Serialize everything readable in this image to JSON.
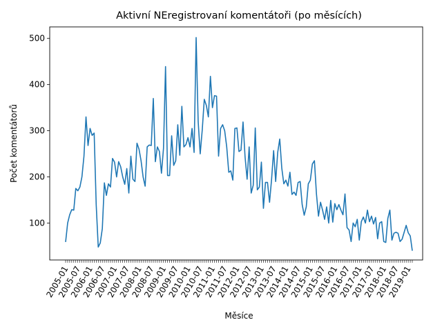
{
  "chart_data": {
    "type": "line",
    "title": "Aktivní NEregistrovaní komentátoři (po měsících)",
    "xlabel": "Měsíce",
    "ylabel": "Počet komentátorů",
    "ylim": [
      20,
      525
    ],
    "yticks": [
      100,
      200,
      300,
      400,
      500
    ],
    "grid": false,
    "legend": "none",
    "line_color": "#1f77b4",
    "x_start": "2005-01",
    "x_tick_labels": [
      "2005-01",
      "2005-07",
      "2006-01",
      "2006-07",
      "2007-01",
      "2007-07",
      "2008-01",
      "2008-07",
      "2009-01",
      "2009-07",
      "2010-01",
      "2010-07",
      "2011-01",
      "2011-07",
      "2012-01",
      "2012-07",
      "2013-01",
      "2013-07",
      "2014-01",
      "2014-07",
      "2015-01",
      "2015-07",
      "2016-01",
      "2016-07",
      "2017-01",
      "2017-07",
      "2018-01",
      "2018-07",
      "2019-01"
    ],
    "series": [
      {
        "values": [
          59,
          100,
          118,
          129,
          128,
          175,
          170,
          178,
          200,
          245,
          330,
          268,
          305,
          290,
          295,
          140,
          48,
          57,
          88,
          187,
          160,
          185,
          178,
          240,
          232,
          200,
          233,
          222,
          200,
          184,
          218,
          165,
          245,
          195,
          190,
          273,
          260,
          235,
          200,
          180,
          265,
          269,
          268,
          370,
          233,
          265,
          255,
          208,
          262,
          439,
          203,
          203,
          289,
          225,
          235,
          313,
          247,
          353,
          265,
          270,
          285,
          265,
          305,
          253,
          502,
          320,
          250,
          302,
          368,
          355,
          330,
          418,
          350,
          376,
          375,
          245,
          305,
          313,
          300,
          265,
          210,
          213,
          193,
          305,
          306,
          255,
          258,
          319,
          243,
          195,
          265,
          165,
          182,
          306,
          172,
          178,
          232,
          132,
          188,
          188,
          145,
          195,
          257,
          190,
          253,
          282,
          219,
          185,
          193,
          180,
          210,
          162,
          167,
          160,
          188,
          190,
          140,
          117,
          135,
          185,
          193,
          228,
          235,
          163,
          115,
          145,
          128,
          108,
          135,
          100,
          149,
          102,
          142,
          129,
          140,
          128,
          118,
          163,
          90,
          85,
          60,
          100,
          92,
          108,
          63,
          103,
          113,
          100,
          128,
          103,
          115,
          98,
          112,
          66,
          100,
          103,
          60,
          58,
          110,
          128,
          63,
          78,
          80,
          78,
          60,
          65,
          80,
          95,
          79,
          72,
          40
        ]
      }
    ]
  }
}
